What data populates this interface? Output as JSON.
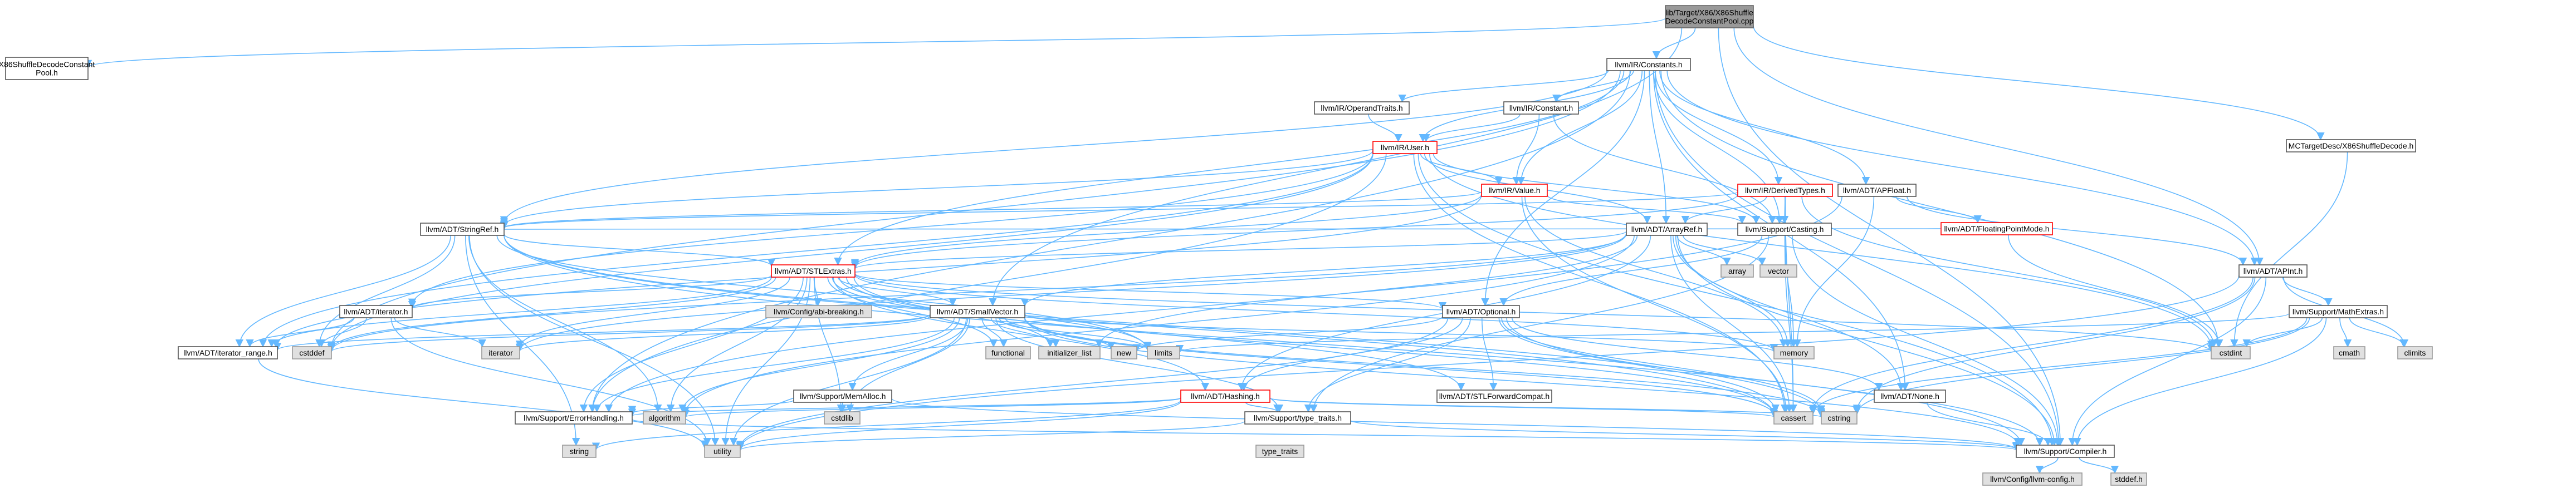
{
  "graph": {
    "root_label": "lib/Target/X86/X86ShuffleDecodeConstantPool.cpp",
    "nodes": [
      {
        "id": "root",
        "label": "lib/Target/X86/X86Shuffle\nDecodeConstantPool.cpp",
        "kind": "root"
      },
      {
        "id": "x86h",
        "label": "X86ShuffleDecodeConstant\nPool.h",
        "kind": "plain"
      },
      {
        "id": "constants",
        "label": "llvm/IR/Constants.h",
        "kind": "plain"
      },
      {
        "id": "mcshuffle",
        "label": "MCTargetDesc/X86ShuffleDecode.h",
        "kind": "plain"
      },
      {
        "id": "operandtraits",
        "label": "llvm/IR/OperandTraits.h",
        "kind": "plain"
      },
      {
        "id": "irconstant",
        "label": "llvm/IR/Constant.h",
        "kind": "plain"
      },
      {
        "id": "user",
        "label": "llvm/IR/User.h",
        "kind": "red"
      },
      {
        "id": "derived",
        "label": "llvm/IR/DerivedTypes.h",
        "kind": "red"
      },
      {
        "id": "apfloat",
        "label": "llvm/ADT/APFloat.h",
        "kind": "plain"
      },
      {
        "id": "value",
        "label": "llvm/IR/Value.h",
        "kind": "red"
      },
      {
        "id": "fpmode",
        "label": "llvm/ADT/FloatingPointMode.h",
        "kind": "red"
      },
      {
        "id": "stringref",
        "label": "llvm/ADT/StringRef.h",
        "kind": "plain"
      },
      {
        "id": "arrayref",
        "label": "llvm/ADT/ArrayRef.h",
        "kind": "plain"
      },
      {
        "id": "casting",
        "label": "llvm/Support/Casting.h",
        "kind": "plain"
      },
      {
        "id": "stlextras",
        "label": "llvm/ADT/STLExtras.h",
        "kind": "red"
      },
      {
        "id": "array",
        "label": "array",
        "kind": "sys"
      },
      {
        "id": "vector",
        "label": "vector",
        "kind": "sys"
      },
      {
        "id": "apint",
        "label": "llvm/ADT/APInt.h",
        "kind": "plain"
      },
      {
        "id": "iteratorh",
        "label": "llvm/ADT/iterator.h",
        "kind": "plain"
      },
      {
        "id": "configbreak",
        "label": "llvm/Config/abi-breaking.h",
        "kind": "sys"
      },
      {
        "id": "smallvector",
        "label": "llvm/ADT/SmallVector.h",
        "kind": "plain"
      },
      {
        "id": "optional",
        "label": "llvm/ADT/Optional.h",
        "kind": "plain"
      },
      {
        "id": "mathextras",
        "label": "llvm/Support/MathExtras.h",
        "kind": "plain"
      },
      {
        "id": "iterrange",
        "label": "llvm/ADT/iterator_range.h",
        "kind": "plain"
      },
      {
        "id": "cstddef",
        "label": "cstddef",
        "kind": "sys"
      },
      {
        "id": "iterator",
        "label": "iterator",
        "kind": "sys"
      },
      {
        "id": "functional",
        "label": "functional",
        "kind": "sys"
      },
      {
        "id": "initlist",
        "label": "initializer_list",
        "kind": "sys"
      },
      {
        "id": "new",
        "label": "new",
        "kind": "sys"
      },
      {
        "id": "limits",
        "label": "limits",
        "kind": "sys"
      },
      {
        "id": "memalloc",
        "label": "llvm/Support/MemAlloc.h",
        "kind": "plain"
      },
      {
        "id": "hashing",
        "label": "llvm/ADT/Hashing.h",
        "kind": "red"
      },
      {
        "id": "stlfwd",
        "label": "llvm/ADT/STLForwardCompat.h",
        "kind": "plain"
      },
      {
        "id": "memory",
        "label": "memory",
        "kind": "sys"
      },
      {
        "id": "none",
        "label": "llvm/ADT/None.h",
        "kind": "plain"
      },
      {
        "id": "cstdint",
        "label": "cstdint",
        "kind": "sys"
      },
      {
        "id": "cmath",
        "label": "cmath",
        "kind": "sys"
      },
      {
        "id": "climits",
        "label": "climits",
        "kind": "sys"
      },
      {
        "id": "errorhandling",
        "label": "llvm/Support/ErrorHandling.h",
        "kind": "plain"
      },
      {
        "id": "algorithm",
        "label": "algorithm",
        "kind": "sys"
      },
      {
        "id": "cstdlib",
        "label": "cstdlib",
        "kind": "sys"
      },
      {
        "id": "typetraitsh",
        "label": "llvm/Support/type_traits.h",
        "kind": "plain"
      },
      {
        "id": "cassert",
        "label": "cassert",
        "kind": "sys"
      },
      {
        "id": "cstring",
        "label": "cstring",
        "kind": "sys"
      },
      {
        "id": "string",
        "label": "string",
        "kind": "sys"
      },
      {
        "id": "utility",
        "label": "utility",
        "kind": "sys"
      },
      {
        "id": "typetraits",
        "label": "type_traits",
        "kind": "sys"
      },
      {
        "id": "compiler",
        "label": "llvm/Support/Compiler.h",
        "kind": "plain"
      },
      {
        "id": "llvmconfig",
        "label": "llvm/Config/llvm-config.h",
        "kind": "sys"
      },
      {
        "id": "stddef",
        "label": "stddef.h",
        "kind": "sys"
      }
    ],
    "edges": [
      [
        "root",
        "x86h"
      ],
      [
        "root",
        "constants"
      ],
      [
        "root",
        "mcshuffle"
      ],
      [
        "root",
        "apint"
      ],
      [
        "root",
        "smallvector"
      ],
      [
        "root",
        "compiler"
      ],
      [
        "constants",
        "operandtraits"
      ],
      [
        "constants",
        "irconstant"
      ],
      [
        "constants",
        "user"
      ],
      [
        "constants",
        "derived"
      ],
      [
        "constants",
        "apfloat"
      ],
      [
        "constants",
        "value"
      ],
      [
        "constants",
        "stringref"
      ],
      [
        "constants",
        "arrayref"
      ],
      [
        "constants",
        "casting"
      ],
      [
        "constants",
        "apint"
      ],
      [
        "constants",
        "optional"
      ],
      [
        "constants",
        "none"
      ],
      [
        "constants",
        "cstdint"
      ],
      [
        "constants",
        "cstddef"
      ],
      [
        "constants",
        "compiler"
      ],
      [
        "constants",
        "errorhandling"
      ],
      [
        "constants",
        "stlextras"
      ],
      [
        "mcshuffle",
        "cstdint"
      ],
      [
        "operandtraits",
        "user"
      ],
      [
        "irconstant",
        "user"
      ],
      [
        "irconstant",
        "value"
      ],
      [
        "irconstant",
        "casting"
      ],
      [
        "user",
        "value"
      ],
      [
        "user",
        "casting"
      ],
      [
        "user",
        "arrayref"
      ],
      [
        "user",
        "stringref"
      ],
      [
        "user",
        "iterrange"
      ],
      [
        "user",
        "cstdint"
      ],
      [
        "user",
        "errorhandling"
      ],
      [
        "user",
        "cassert"
      ],
      [
        "user",
        "compiler"
      ],
      [
        "user",
        "iteratorh"
      ],
      [
        "user",
        "cstddef"
      ],
      [
        "derived",
        "casting"
      ],
      [
        "derived",
        "arrayref"
      ],
      [
        "derived",
        "stlextras"
      ],
      [
        "derived",
        "stringref"
      ],
      [
        "derived",
        "cassert"
      ],
      [
        "derived",
        "cstdint"
      ],
      [
        "apfloat",
        "apint"
      ],
      [
        "apfloat",
        "fpmode"
      ],
      [
        "apfloat",
        "errorhandling"
      ],
      [
        "apfloat",
        "memory"
      ],
      [
        "value",
        "casting"
      ],
      [
        "value",
        "stlextras"
      ],
      [
        "value",
        "iterrange"
      ],
      [
        "value",
        "stringref"
      ],
      [
        "value",
        "memory"
      ],
      [
        "value",
        "cassert"
      ],
      [
        "fpmode",
        "stringref"
      ],
      [
        "fpmode",
        "cstdint"
      ],
      [
        "stringref",
        "stlextras"
      ],
      [
        "stringref",
        "iterrange"
      ],
      [
        "stringref",
        "compiler"
      ],
      [
        "stringref",
        "algorithm"
      ],
      [
        "stringref",
        "cassert"
      ],
      [
        "stringref",
        "cstddef"
      ],
      [
        "stringref",
        "cstring"
      ],
      [
        "stringref",
        "limits"
      ],
      [
        "stringref",
        "string"
      ],
      [
        "stringref",
        "type_traits"
      ],
      [
        "stringref",
        "utility"
      ],
      [
        "arrayref",
        "hashing"
      ],
      [
        "arrayref",
        "none"
      ],
      [
        "arrayref",
        "smallvector"
      ],
      [
        "arrayref",
        "stlextras"
      ],
      [
        "arrayref",
        "compiler"
      ],
      [
        "arrayref",
        "algorithm"
      ],
      [
        "arrayref",
        "array"
      ],
      [
        "arrayref",
        "cassert"
      ],
      [
        "arrayref",
        "cstddef"
      ],
      [
        "arrayref",
        "initlist"
      ],
      [
        "arrayref",
        "iterator"
      ],
      [
        "arrayref",
        "memory"
      ],
      [
        "arrayref",
        "type_traits"
      ],
      [
        "arrayref",
        "vector"
      ],
      [
        "casting",
        "compiler"
      ],
      [
        "casting",
        "type_traits"
      ],
      [
        "casting",
        "cassert"
      ],
      [
        "casting",
        "memory"
      ],
      [
        "casting",
        "typetraitsh"
      ],
      [
        "casting",
        "optional"
      ],
      [
        "stlextras",
        "configbreak"
      ],
      [
        "stlextras",
        "iteratorh"
      ],
      [
        "stlextras",
        "iterrange"
      ],
      [
        "stlextras",
        "stlfwd"
      ],
      [
        "stlextras",
        "errorhandling"
      ],
      [
        "stlextras",
        "smallvector"
      ],
      [
        "stlextras",
        "optional"
      ],
      [
        "stlextras",
        "hashing"
      ],
      [
        "stlextras",
        "algorithm"
      ],
      [
        "stlextras",
        "cassert"
      ],
      [
        "stlextras",
        "cstddef"
      ],
      [
        "stlextras",
        "cstdint"
      ],
      [
        "stlextras",
        "cstdlib"
      ],
      [
        "stlextras",
        "functional"
      ],
      [
        "stlextras",
        "initlist"
      ],
      [
        "stlextras",
        "iterator"
      ],
      [
        "stlextras",
        "limits"
      ],
      [
        "stlextras",
        "memory"
      ],
      [
        "stlextras",
        "tuple"
      ],
      [
        "stlextras",
        "type_traits"
      ],
      [
        "stlextras",
        "utility"
      ],
      [
        "apint",
        "mathextras"
      ],
      [
        "apint",
        "cassert"
      ],
      [
        "apint",
        "climits"
      ],
      [
        "apint",
        "cstring"
      ],
      [
        "apint",
        "utility"
      ],
      [
        "apint",
        "compiler"
      ],
      [
        "iteratorh",
        "iterrange"
      ],
      [
        "iteratorh",
        "cstddef"
      ],
      [
        "iteratorh",
        "iterator"
      ],
      [
        "iteratorh",
        "type_traits"
      ],
      [
        "iteratorh",
        "utility"
      ],
      [
        "smallvector",
        "compiler"
      ],
      [
        "smallvector",
        "type_traits"
      ],
      [
        "smallvector",
        "algorithm"
      ],
      [
        "smallvector",
        "cassert"
      ],
      [
        "smallvector",
        "cstddef"
      ],
      [
        "smallvector",
        "cstdlib"
      ],
      [
        "smallvector",
        "cstring"
      ],
      [
        "smallvector",
        "functional"
      ],
      [
        "smallvector",
        "initlist"
      ],
      [
        "smallvector",
        "iterator"
      ],
      [
        "smallvector",
        "limits"
      ],
      [
        "smallvector",
        "memory"
      ],
      [
        "smallvector",
        "new"
      ],
      [
        "smallvector",
        "utility"
      ],
      [
        "smallvector",
        "memalloc"
      ],
      [
        "smallvector",
        "errorhandling"
      ],
      [
        "smallvector",
        "typetraitsh"
      ],
      [
        "smallvector",
        "iterrange"
      ],
      [
        "optional",
        "hashing"
      ],
      [
        "optional",
        "none"
      ],
      [
        "optional",
        "stlfwd"
      ],
      [
        "optional",
        "compiler"
      ],
      [
        "optional",
        "typetraitsh"
      ],
      [
        "optional",
        "cassert"
      ],
      [
        "optional",
        "cstring"
      ],
      [
        "optional",
        "new"
      ],
      [
        "optional",
        "utility"
      ],
      [
        "mathextras",
        "compiler"
      ],
      [
        "mathextras",
        "cassert"
      ],
      [
        "mathextras",
        "climits"
      ],
      [
        "mathextras",
        "cmath"
      ],
      [
        "mathextras",
        "cstdint"
      ],
      [
        "mathextras",
        "cstring"
      ],
      [
        "mathextras",
        "limits"
      ],
      [
        "mathextras",
        "type_traits"
      ],
      [
        "iterrange",
        "utility"
      ],
      [
        "memalloc",
        "compiler"
      ],
      [
        "memalloc",
        "errorhandling"
      ],
      [
        "memalloc",
        "cstdlib"
      ],
      [
        "hashing",
        "errorhandling"
      ],
      [
        "hashing",
        "typetraitsh"
      ],
      [
        "hashing",
        "algorithm"
      ],
      [
        "hashing",
        "cassert"
      ],
      [
        "hashing",
        "cstring"
      ],
      [
        "hashing",
        "string"
      ],
      [
        "hashing",
        "tuple"
      ],
      [
        "hashing",
        "utility"
      ],
      [
        "stlfwd",
        "type_traits"
      ],
      [
        "none",
        "compiler"
      ],
      [
        "errorhandling",
        "compiler"
      ],
      [
        "typetraitsh",
        "compiler"
      ],
      [
        "typetraitsh",
        "type_traits"
      ],
      [
        "typetraitsh",
        "utility"
      ],
      [
        "compiler",
        "llvmconfig"
      ],
      [
        "compiler",
        "stddef"
      ]
    ]
  }
}
